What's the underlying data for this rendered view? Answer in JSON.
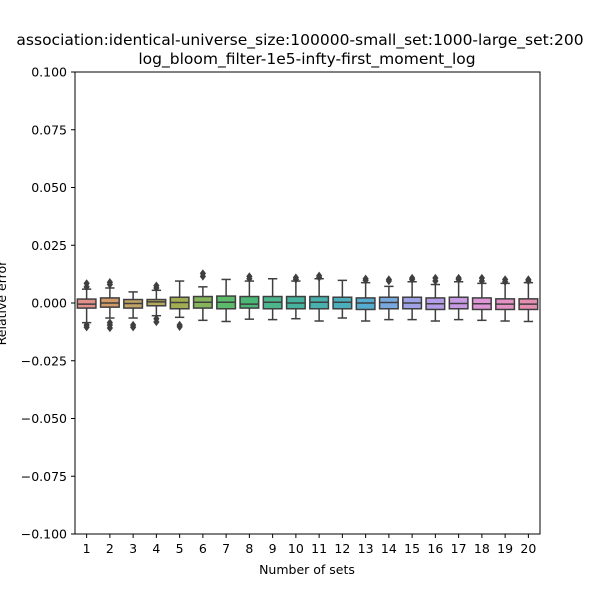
{
  "chart_data": {
    "type": "box",
    "title_line1": "association:identical-universe_size:100000-small_set:1000-large_set:200",
    "title_line2": "log_bloom_filter-1e5-infty-first_moment_log",
    "xlabel": "Number of sets",
    "ylabel": "Relative error",
    "ylim": [
      -0.1,
      0.1
    ],
    "yticks": [
      -0.1,
      -0.075,
      -0.05,
      -0.025,
      0.0,
      0.025,
      0.05,
      0.075,
      0.1
    ],
    "ytick_labels": [
      "−0.100",
      "−0.075",
      "−0.050",
      "−0.025",
      "0.000",
      "0.025",
      "0.050",
      "0.075",
      "0.100"
    ],
    "categories": [
      "1",
      "2",
      "3",
      "4",
      "5",
      "6",
      "7",
      "8",
      "9",
      "10",
      "11",
      "12",
      "13",
      "14",
      "15",
      "16",
      "17",
      "18",
      "19",
      "20"
    ],
    "colors": [
      "#e1908a",
      "#d19a66",
      "#c2a464",
      "#b4a85a",
      "#a2ad52",
      "#85b45b",
      "#5bbb6a",
      "#4bb877",
      "#4bb58e",
      "#47b29d",
      "#48b0ad",
      "#4aaebd",
      "#55abd0",
      "#79a8df",
      "#9fa3e5",
      "#b49de6",
      "#c99ae4",
      "#dc95d5",
      "#e492c3",
      "#e58eaf"
    ],
    "boxes": [
      {
        "whislo": -0.0085,
        "q1": -0.0022,
        "med": -0.0005,
        "q3": 0.0017,
        "whishi": 0.006,
        "fliers": [
          0.0085,
          0.007,
          -0.0095,
          -0.0105
        ]
      },
      {
        "whislo": -0.0065,
        "q1": -0.0018,
        "med": 0.0,
        "q3": 0.0022,
        "whishi": 0.0065,
        "fliers": [
          0.009,
          0.008,
          -0.0085,
          -0.0095,
          -0.0108
        ]
      },
      {
        "whislo": -0.0065,
        "q1": -0.0022,
        "med": -0.0002,
        "q3": 0.0015,
        "whishi": 0.0048,
        "fliers": [
          -0.0095,
          -0.0105
        ]
      },
      {
        "whislo": -0.0055,
        "q1": -0.0012,
        "med": 0.0005,
        "q3": 0.0015,
        "whishi": 0.0055,
        "fliers": [
          0.0065,
          0.0075,
          -0.0068,
          -0.0082
        ]
      },
      {
        "whislo": -0.0062,
        "q1": -0.0025,
        "med": 0.0002,
        "q3": 0.0025,
        "whishi": 0.0095,
        "fliers": [
          -0.0095,
          -0.0103
        ]
      },
      {
        "whislo": -0.0075,
        "q1": -0.0022,
        "med": 0.0003,
        "q3": 0.0028,
        "whishi": 0.007,
        "fliers": [
          0.0115,
          0.0128
        ]
      },
      {
        "whislo": -0.008,
        "q1": -0.0025,
        "med": 0.0003,
        "q3": 0.003,
        "whishi": 0.0102,
        "fliers": []
      },
      {
        "whislo": -0.007,
        "q1": -0.0022,
        "med": -0.0005,
        "q3": 0.0028,
        "whishi": 0.0095,
        "fliers": [
          0.0105,
          0.0115
        ]
      },
      {
        "whislo": -0.0072,
        "q1": -0.0025,
        "med": 0.0003,
        "q3": 0.0028,
        "whishi": 0.0105,
        "fliers": []
      },
      {
        "whislo": -0.0068,
        "q1": -0.0025,
        "med": 0.0,
        "q3": 0.0028,
        "whishi": 0.0095,
        "fliers": [
          0.0102,
          0.011
        ]
      },
      {
        "whislo": -0.0078,
        "q1": -0.0025,
        "med": 0.0003,
        "q3": 0.0028,
        "whishi": 0.0105,
        "fliers": [
          0.011,
          0.0118
        ]
      },
      {
        "whislo": -0.0065,
        "q1": -0.0025,
        "med": 0.0003,
        "q3": 0.0025,
        "whishi": 0.0098,
        "fliers": []
      },
      {
        "whislo": -0.0078,
        "q1": -0.0028,
        "med": 0.0,
        "q3": 0.0022,
        "whishi": 0.0088,
        "fliers": [
          0.0098,
          0.0105
        ]
      },
      {
        "whislo": -0.0072,
        "q1": -0.0025,
        "med": 0.0002,
        "q3": 0.0025,
        "whishi": 0.0072,
        "fliers": [
          0.0095,
          0.0102
        ]
      },
      {
        "whislo": -0.0072,
        "q1": -0.0025,
        "med": 0.0,
        "q3": 0.0025,
        "whishi": 0.0092,
        "fliers": [
          0.0102,
          0.0108
        ]
      },
      {
        "whislo": -0.0078,
        "q1": -0.0028,
        "med": -0.0003,
        "q3": 0.0022,
        "whishi": 0.008,
        "fliers": [
          0.0095,
          0.0108
        ]
      },
      {
        "whislo": -0.0072,
        "q1": -0.0025,
        "med": -0.0002,
        "q3": 0.0025,
        "whishi": 0.0092,
        "fliers": [
          0.0102,
          0.0108
        ]
      },
      {
        "whislo": -0.0075,
        "q1": -0.0028,
        "med": -0.0003,
        "q3": 0.0022,
        "whishi": 0.0085,
        "fliers": [
          0.0095,
          0.0108
        ]
      },
      {
        "whislo": -0.0078,
        "q1": -0.0028,
        "med": -0.0005,
        "q3": 0.0018,
        "whishi": 0.0085,
        "fliers": [
          0.0092,
          0.0102
        ]
      },
      {
        "whislo": -0.008,
        "q1": -0.0028,
        "med": -0.0005,
        "q3": 0.0018,
        "whishi": 0.0088,
        "fliers": [
          0.0095,
          0.0102
        ]
      }
    ]
  }
}
